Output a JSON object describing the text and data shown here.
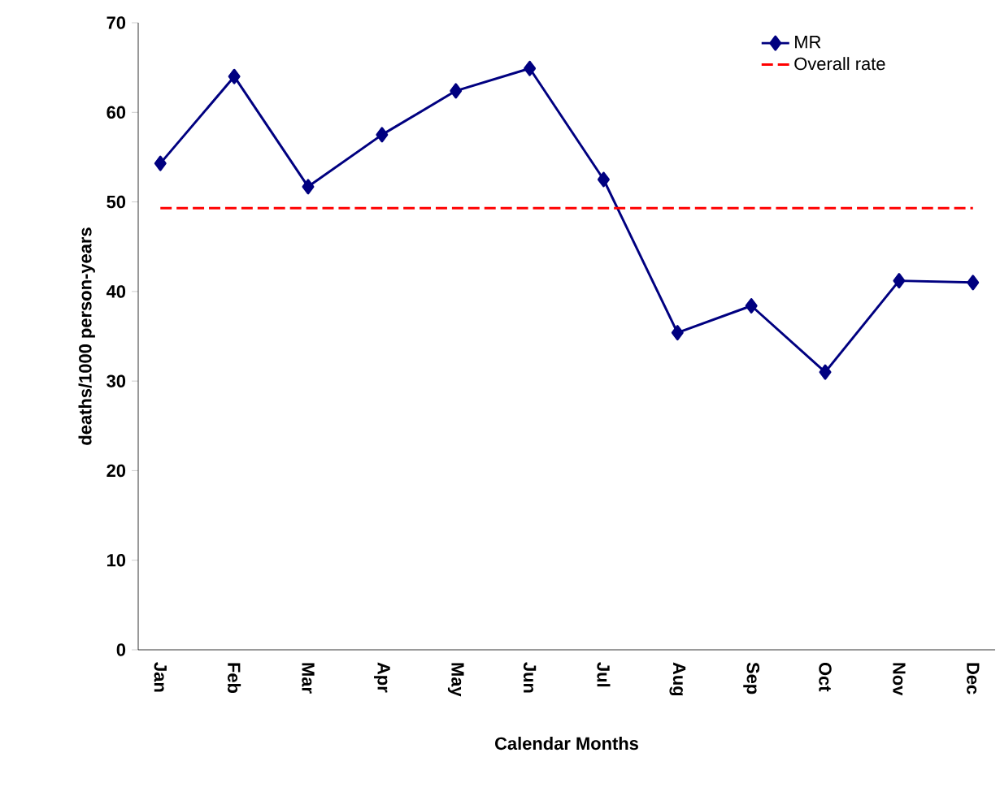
{
  "chart_data": {
    "type": "line",
    "xlabel": "Calendar Months",
    "ylabel": "deaths/1000 person-years",
    "categories": [
      "Jan",
      "Feb",
      "Mar",
      "Apr",
      "May",
      "Jun",
      "Jul",
      "Aug",
      "Sep",
      "Oct",
      "Nov",
      "Dec"
    ],
    "series": [
      {
        "name": "MR",
        "color": "#000080",
        "marker": "diamond",
        "line_style": "solid",
        "values": [
          54.3,
          64.0,
          51.7,
          57.5,
          62.4,
          64.9,
          52.5,
          35.4,
          38.4,
          31.0,
          41.2,
          41.0
        ]
      },
      {
        "name": "Overall rate",
        "color": "#ff0000",
        "marker": "none",
        "line_style": "dashed",
        "values": [
          49.3,
          49.3,
          49.3,
          49.3,
          49.3,
          49.3,
          49.3,
          49.3,
          49.3,
          49.3,
          49.3,
          49.3
        ]
      }
    ],
    "ylim": [
      0,
      70
    ],
    "yticks": [
      0,
      10,
      20,
      30,
      40,
      50,
      60,
      70
    ],
    "grid": false,
    "legend": "top right"
  }
}
